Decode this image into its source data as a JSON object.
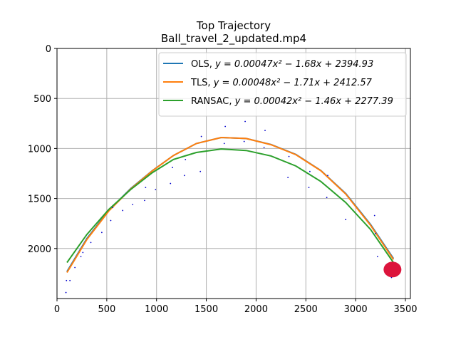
{
  "chart_data": {
    "type": "scatter",
    "title": "Top Trajectory",
    "subtitle": "Ball_travel_2_updated.mp4",
    "xlabel": "",
    "ylabel": "",
    "xlim": [
      0,
      3550
    ],
    "ylim": [
      2500,
      0
    ],
    "y_inverted": true,
    "grid": true,
    "x_ticks": [
      0,
      500,
      1000,
      1500,
      2000,
      2500,
      3000,
      3500
    ],
    "y_ticks": [
      0,
      500,
      1000,
      1500,
      2000
    ],
    "legend_position": "top-right",
    "series": [
      {
        "name": "OLS, y = 0.00047x² − 1.68x + 2394.93",
        "label_prefix": "OLS, ",
        "equation": "y = 0.00047x² − 1.68x + 2394.93",
        "color": "#1f77b4",
        "kind": "line",
        "x": [
          100,
          300,
          520,
          740,
          960,
          1170,
          1400,
          1650,
          1900,
          2150,
          2400,
          2650,
          2900,
          3150,
          3380
        ],
        "y": [
          2230,
          1900,
          1620,
          1400,
          1220,
          1070,
          950,
          890,
          900,
          960,
          1060,
          1220,
          1450,
          1760,
          2100
        ]
      },
      {
        "name": "TLS, y = 0.00048x² − 1.71x + 2412.57",
        "label_prefix": "TLS, ",
        "equation": "y = 0.00048x² − 1.71x + 2412.57",
        "color": "#ff7f0e",
        "kind": "line",
        "x": [
          100,
          300,
          520,
          740,
          960,
          1170,
          1400,
          1650,
          1900,
          2150,
          2400,
          2650,
          2900,
          3150,
          3380
        ],
        "y": [
          2240,
          1910,
          1625,
          1405,
          1222,
          1070,
          950,
          890,
          900,
          962,
          1062,
          1222,
          1455,
          1768,
          2110
        ]
      },
      {
        "name": "RANSAC, y = 0.00042x² − 1.46x + 2277.39",
        "label_prefix": "RANSAC, ",
        "equation": "y = 0.00042x² − 1.46x + 2277.39",
        "color": "#2ca02c",
        "kind": "line",
        "x": [
          100,
          300,
          520,
          740,
          960,
          1170,
          1400,
          1650,
          1900,
          2150,
          2400,
          2650,
          2900,
          3150,
          3380
        ],
        "y": [
          2140,
          1860,
          1610,
          1410,
          1240,
          1110,
          1040,
          1005,
          1020,
          1075,
          1175,
          1330,
          1540,
          1810,
          2140
        ]
      },
      {
        "name": "detections",
        "color": "#0000cc",
        "kind": "points",
        "x": [
          90,
          95,
          130,
          180,
          240,
          260,
          340,
          450,
          540,
          560,
          660,
          760,
          880,
          890,
          990,
          1140,
          1160,
          1280,
          1290,
          1440,
          1450,
          1680,
          1690,
          1880,
          1890,
          2080,
          2090,
          2320,
          2330,
          2530,
          2540,
          2710,
          2720,
          2900,
          3190,
          3200,
          3220,
          3360
        ],
        "y": [
          2440,
          2320,
          2320,
          2190,
          2080,
          2040,
          1940,
          1840,
          1720,
          1590,
          1620,
          1560,
          1520,
          1390,
          1410,
          1350,
          1190,
          1270,
          1110,
          1230,
          880,
          950,
          780,
          930,
          730,
          990,
          820,
          1290,
          1080,
          1390,
          1230,
          1490,
          1270,
          1710,
          1670,
          1850,
          2080,
          2290
        ]
      },
      {
        "name": "ball",
        "color": "#dc143c",
        "kind": "marker",
        "x": [
          3370
        ],
        "y": [
          2210
        ]
      }
    ]
  }
}
